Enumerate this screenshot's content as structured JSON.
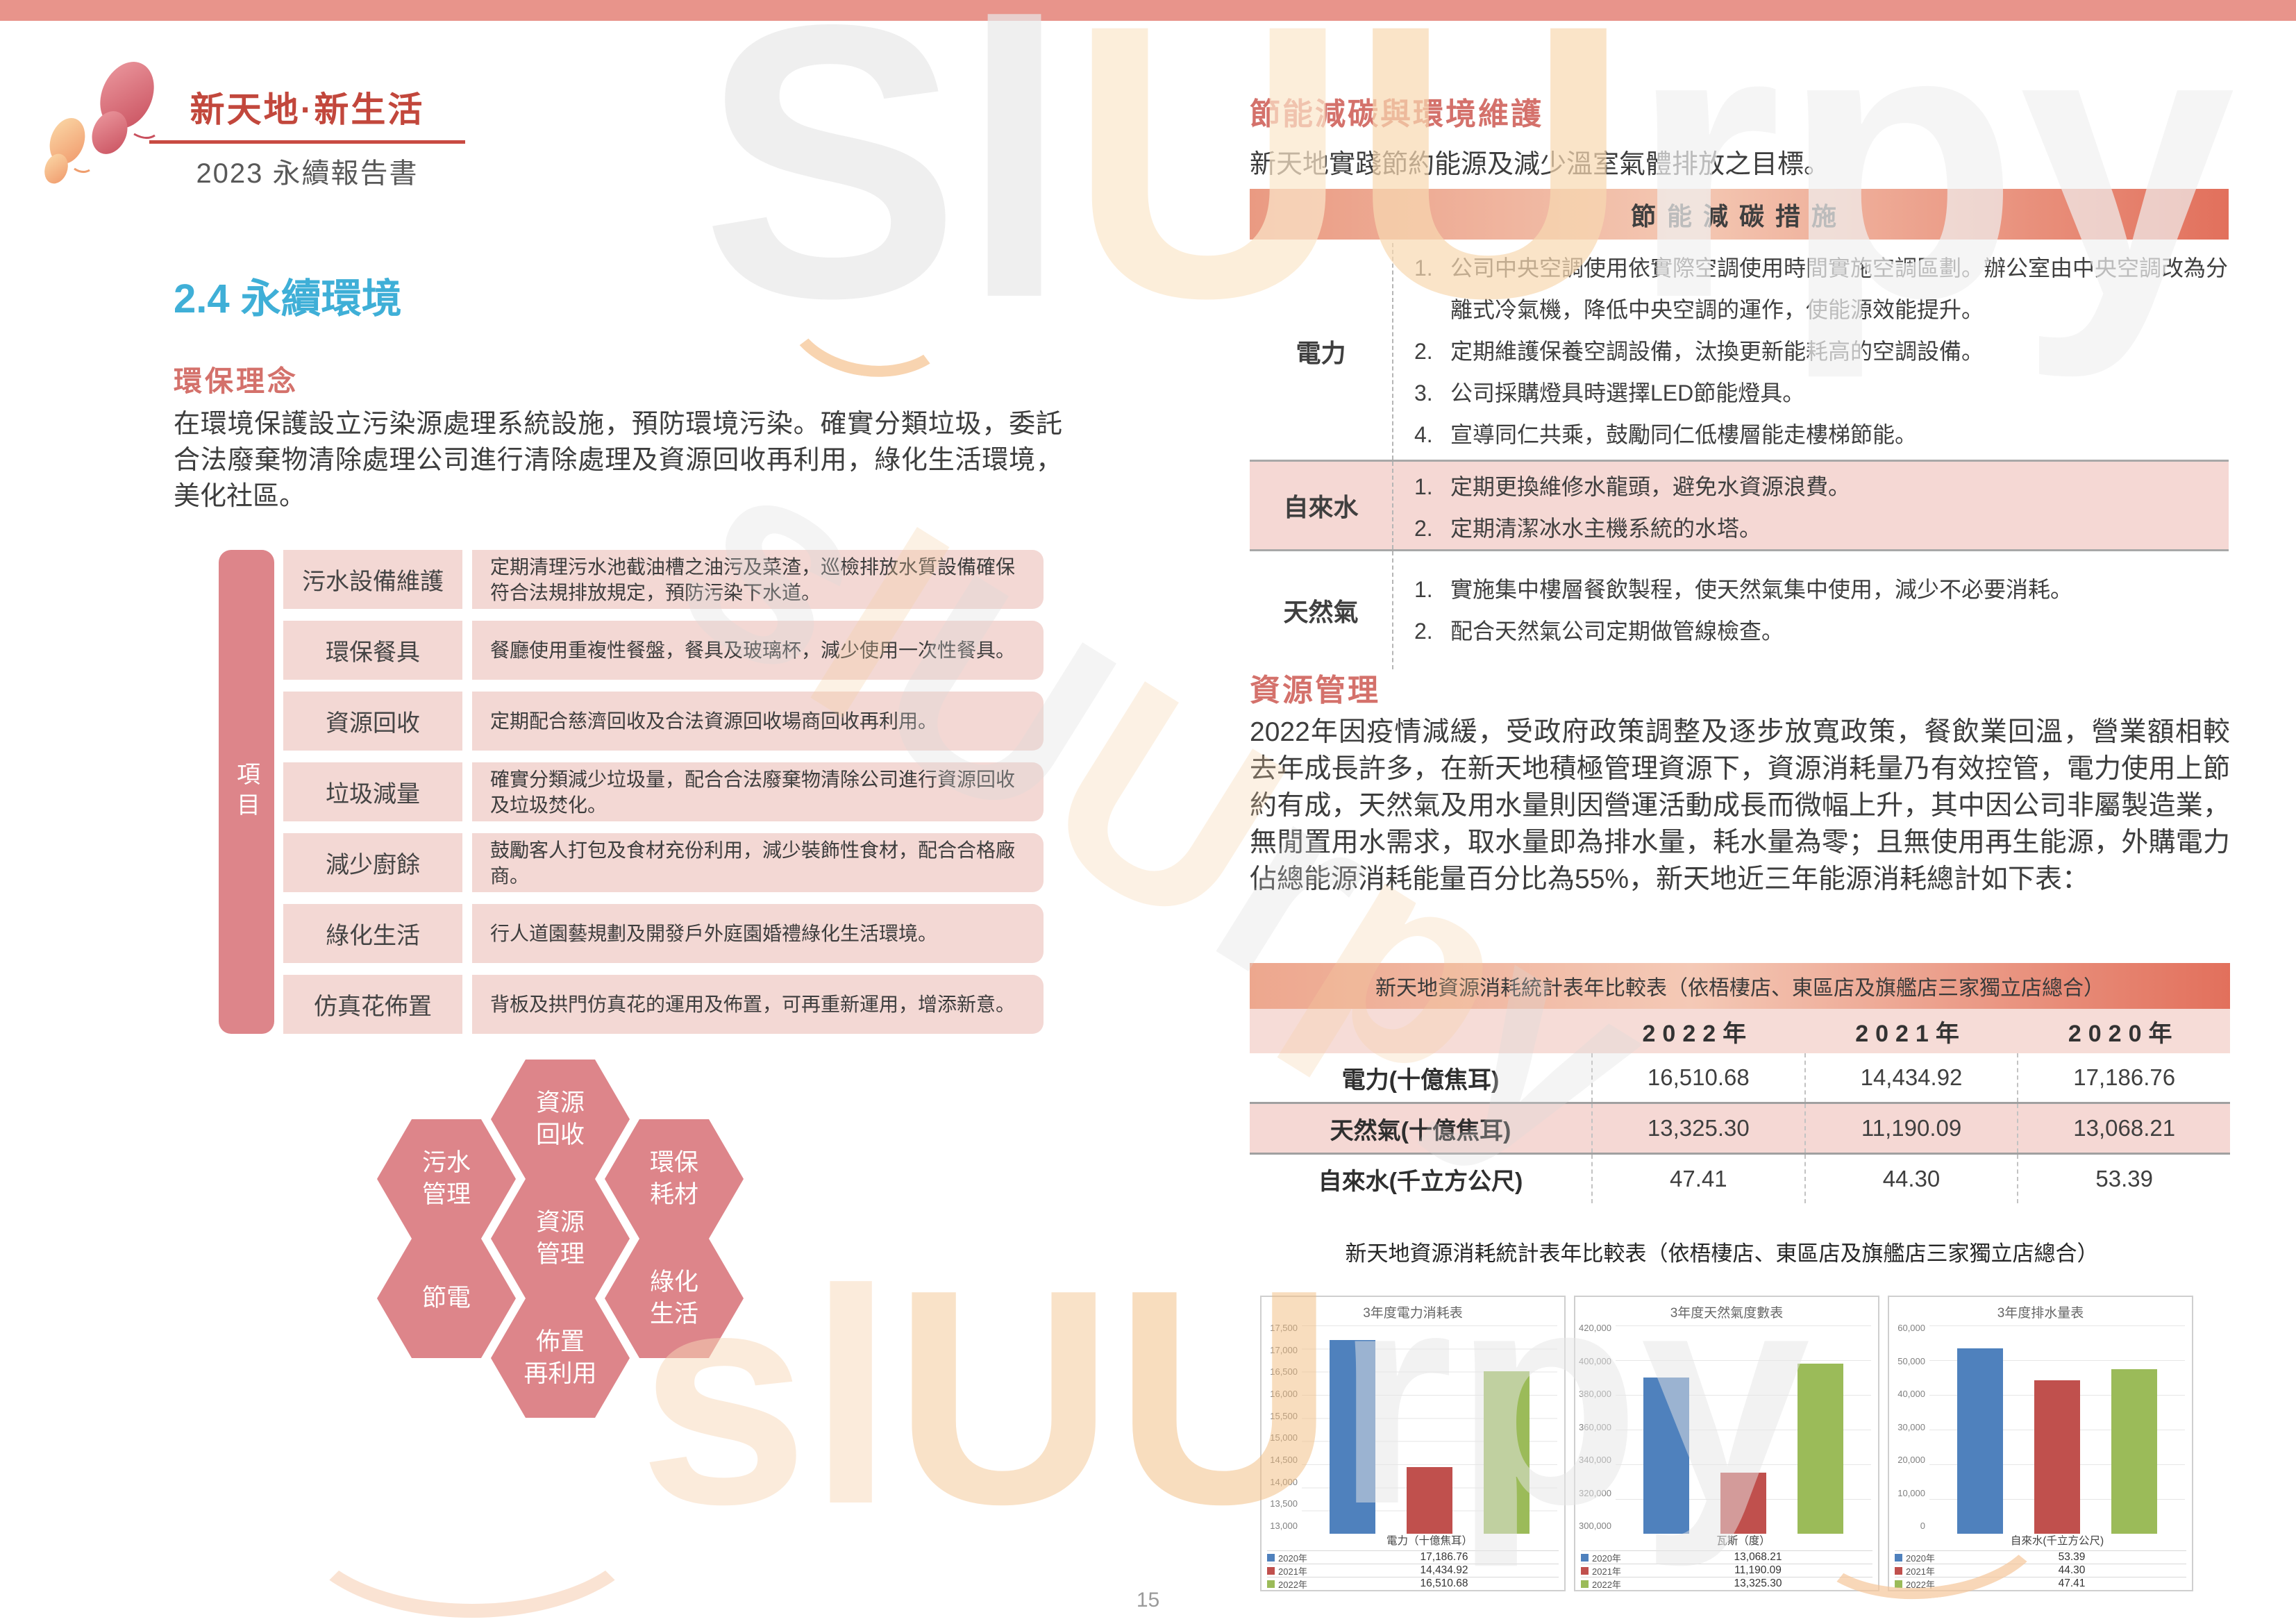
{
  "brand": {
    "title": "新天地·新生活",
    "subtitle": "2023 永續報告書"
  },
  "page_number": "15",
  "palette": {
    "top_bar": "#e8948b",
    "section_blue": "#3fafd7",
    "heading_salmon": "#d4716b",
    "rose": "#dd858a",
    "cell_pink": "#f3d8d4",
    "bar_blue": "#4f81bd",
    "bar_red": "#c0504d",
    "bar_green": "#9bbb59"
  },
  "watermark": {
    "top": "SlUUrpy",
    "mid": "slUUrpy",
    "bottom": "slUUrpy"
  },
  "left": {
    "section_title": "2.4 永續環境",
    "eco_heading": "環保理念",
    "eco_paragraph": "在環境保護設立污染源處理系統設施，預防環境污染。確實分類垃圾，委託合法廢棄物清除處理公司進行清除處理及資源回收再利用，綠化生活環境，美化社區。",
    "items_axis": "項目",
    "items": [
      {
        "label": "污水設備維護",
        "desc": "定期清理污水池截油槽之油污及菜渣，巡檢排放水質設備確保符合法規排放規定，預防污染下水道。"
      },
      {
        "label": "環保餐具",
        "desc": "餐廳使用重複性餐盤，餐具及玻璃杯，減少使用一次性餐具。"
      },
      {
        "label": "資源回收",
        "desc": "定期配合慈濟回收及合法資源回收場商回收再利用。"
      },
      {
        "label": "垃圾減量",
        "desc": "確實分類減少垃圾量，配合合法廢棄物清除公司進行資源回收及垃圾焚化。"
      },
      {
        "label": "減少廚餘",
        "desc": "鼓勵客人打包及食材充份利用，減少裝飾性食材，配合合格廠商。"
      },
      {
        "label": "綠化生活",
        "desc": "行人道園藝規劃及開發戶外庭園婚禮綠化生活環境。"
      },
      {
        "label": "仿真花佈置",
        "desc": "背板及拱門仿真花的運用及佈置，可再重新運用，增添新意。"
      }
    ],
    "hexagons": {
      "top": [
        "資源",
        "回收"
      ],
      "upper_left": [
        "污水",
        "管理"
      ],
      "upper_right": [
        "環保",
        "耗材"
      ],
      "center": [
        "資源",
        "管理"
      ],
      "lower_left": [
        "節電"
      ],
      "lower_right": [
        "綠化",
        "生活"
      ],
      "bottom": [
        "佈置",
        "再利用"
      ]
    }
  },
  "right": {
    "energy_heading": "節能減碳與環境維護",
    "energy_intro": "新天地實踐節約能源及減少溫室氣體排放之目標。",
    "measures_header": "節能減碳措施",
    "measures": [
      {
        "label": "電力",
        "items": [
          {
            "n": "1.",
            "t": "公司中央空調使用依實際空調使用時間實施空調區劃。辦公室由中央空調改為分離式冷氣機，降低中央空調的運作，使能源效能提升。"
          },
          {
            "n": "2.",
            "t": "定期維護保養空調設備，汰換更新能耗高的空調設備。"
          },
          {
            "n": "3.",
            "t": "公司採購燈具時選擇LED節能燈具。"
          },
          {
            "n": "4.",
            "t": "宣導同仁共乘，鼓勵同仁低樓層能走樓梯節能。"
          }
        ]
      },
      {
        "label": "自來水",
        "items": [
          {
            "n": "1.",
            "t": "定期更換維修水龍頭，避免水資源浪費。"
          },
          {
            "n": "2.",
            "t": "定期清潔冰水主機系統的水塔。"
          }
        ]
      },
      {
        "label": "天然氣",
        "items": [
          {
            "n": "1.",
            "t": "實施集中樓層餐飲製程，使天然氣集中使用，減少不必要消耗。"
          },
          {
            "n": "2.",
            "t": "配合天然氣公司定期做管線檢查。"
          }
        ]
      }
    ],
    "resource_heading": "資源管理",
    "resource_paragraph": "2022年因疫情減緩，受政府政策調整及逐步放寬政策，餐飲業回溫，營業額相較去年成長許多，在新天地積極管理資源下，資源消耗量乃有效控管，電力使用上節約有成，天然氣及用水量則因營運活動成長而微幅上升，其中因公司非屬製造業，無閒置用水需求，取水量即為排水量，耗水量為零；且無使用再生能源，外購電力佔總能源消耗能量百分比為55%，新天地近三年能源消耗總計如下表：",
    "table": {
      "title": "新天地資源消耗統計表年比較表（依梧棲店、東區店及旗艦店三家獨立店總合）",
      "col_headers": [
        "2022年",
        "2021年",
        "2020年"
      ],
      "rows": [
        {
          "label": "電力(十億焦耳)",
          "values": [
            "16,510.68",
            "14,434.92",
            "17,186.76"
          ]
        },
        {
          "label": "天然氣(十億焦耳)",
          "values": [
            "13,325.30",
            "11,190.09",
            "13,068.21"
          ]
        },
        {
          "label": "自來水(千立方公尺)",
          "values": [
            "47.41",
            "44.30",
            "53.39"
          ]
        }
      ]
    },
    "charts_caption": "新天地資源消耗統計表年比較表（依梧棲店、東區店及旗艦店三家獨立店總合）"
  },
  "chart_data": [
    {
      "type": "bar",
      "title": "3年度電力消耗表",
      "categories": [
        "2020年",
        "2021年",
        "2022年"
      ],
      "values": [
        17186.76,
        14434.92,
        16510.68
      ],
      "display_values": [
        "17,186.76",
        "14,434.92",
        "16,510.68"
      ],
      "plot_values": [
        17186.76,
        14434.92,
        16510.68
      ],
      "ylim": [
        13000,
        17500
      ],
      "yticks": [
        "17,500",
        "17,000",
        "16,500",
        "16,000",
        "15,500",
        "15,000",
        "14,500",
        "14,000",
        "13,500",
        "13,000"
      ],
      "xlabel": "電力（十億焦耳）",
      "ylabel": "",
      "grid": true,
      "legend_position": "bottom-left",
      "colors": [
        "#4f81bd",
        "#c0504d",
        "#9bbb59"
      ]
    },
    {
      "type": "bar",
      "title": "3年度天然氣度數表",
      "categories": [
        "2020年",
        "2021年",
        "2022年"
      ],
      "values": [
        13068.21,
        11190.09,
        13325.3
      ],
      "display_values": [
        "13,068.21",
        "11,190.09",
        "13,325.30"
      ],
      "plot_values": [
        390000,
        335000,
        398000
      ],
      "ylim": [
        300000,
        420000
      ],
      "yticks": [
        "420,000",
        "400,000",
        "380,000",
        "360,000",
        "340,000",
        "320,000",
        "300,000"
      ],
      "xlabel": "瓦斯（度）",
      "ylabel": "",
      "grid": true,
      "legend_position": "bottom-left",
      "colors": [
        "#4f81bd",
        "#c0504d",
        "#9bbb59"
      ]
    },
    {
      "type": "bar",
      "title": "3年度排水量表",
      "categories": [
        "2020年",
        "2021年",
        "2022年"
      ],
      "values": [
        53.39,
        44.3,
        47.41
      ],
      "display_values": [
        "53.39",
        "44.30",
        "47.41"
      ],
      "plot_values": [
        53390,
        44300,
        47410
      ],
      "ylim": [
        0,
        60000
      ],
      "yticks": [
        "60,000",
        "50,000",
        "40,000",
        "30,000",
        "20,000",
        "10,000",
        "0"
      ],
      "xlabel": "自來水(千立方公尺)",
      "ylabel": "",
      "grid": true,
      "legend_position": "bottom-left",
      "colors": [
        "#4f81bd",
        "#c0504d",
        "#9bbb59"
      ]
    }
  ]
}
